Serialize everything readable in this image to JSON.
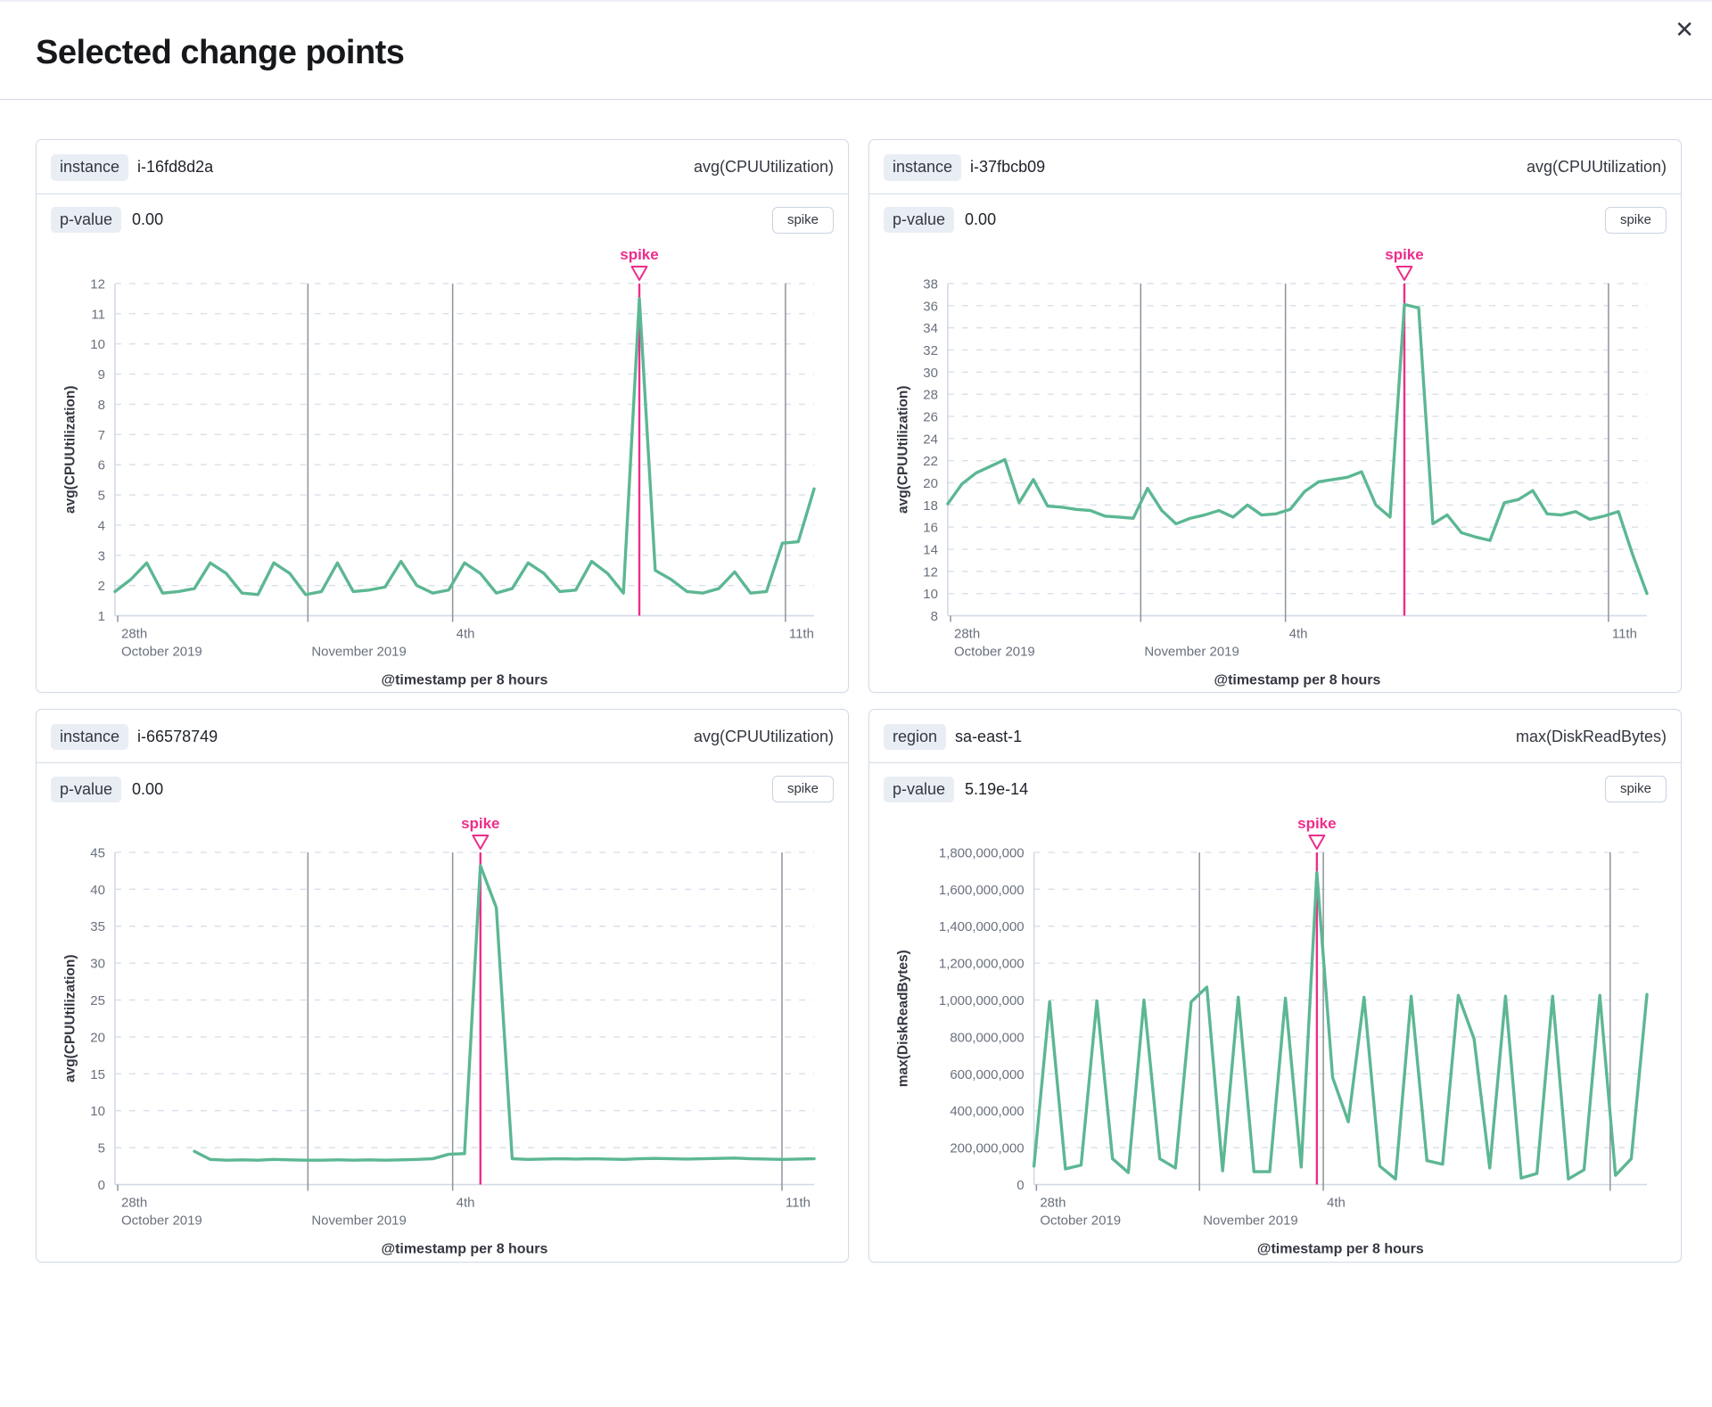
{
  "modal": {
    "title": "Selected change points",
    "close_icon": "✕"
  },
  "colors": {
    "series": "#5CB793",
    "accent": "#ED2D8B",
    "grid_dashed": "#D9DFEA",
    "grid_solid": "#D3DAE6",
    "vline": "#8E939B",
    "tick_text": "#69707D",
    "axis_title": "#343741"
  },
  "panels": [
    {
      "key_label": "instance",
      "key_value": "i-16fd8d2a",
      "metric": "avg(CPUUtilization)",
      "p_label": "p-value",
      "p_value": "0.00",
      "change_type": "spike"
    },
    {
      "key_label": "instance",
      "key_value": "i-37fbcb09",
      "metric": "avg(CPUUtilization)",
      "p_label": "p-value",
      "p_value": "0.00",
      "change_type": "spike"
    },
    {
      "key_label": "instance",
      "key_value": "i-66578749",
      "metric": "avg(CPUUtilization)",
      "p_label": "p-value",
      "p_value": "0.00",
      "change_type": "spike"
    },
    {
      "key_label": "region",
      "key_value": "sa-east-1",
      "metric": "max(DiskReadBytes)",
      "p_label": "p-value",
      "p_value": "5.19e-14",
      "change_type": "spike"
    }
  ],
  "chart_data": [
    {
      "type": "line",
      "ylabel": "avg(CPUUtilization)",
      "xlabel": "@timestamp per 8 hours",
      "annotation": "spike",
      "y_min": 1,
      "y_max": 12,
      "y_step": 1,
      "y_format": "plain",
      "x_ticks": [
        {
          "f": 0.004,
          "l1": "28th",
          "l2": "October 2019",
          "grid": false
        },
        {
          "f": 0.276,
          "l1": "",
          "l2": "November 2019",
          "grid": true
        },
        {
          "f": 0.483,
          "l1": "4th",
          "l2": "",
          "grid": true
        },
        {
          "f": 0.959,
          "l1": "11th",
          "l2": "",
          "grid": true
        }
      ],
      "spike_index": 33,
      "values": [
        1.8,
        2.2,
        2.75,
        1.75,
        1.8,
        1.9,
        2.75,
        2.4,
        1.75,
        1.7,
        2.75,
        2.4,
        1.7,
        1.8,
        2.75,
        1.8,
        1.85,
        1.95,
        2.8,
        2.0,
        1.75,
        1.85,
        2.75,
        2.4,
        1.75,
        1.9,
        2.75,
        2.4,
        1.8,
        1.85,
        2.8,
        2.4,
        1.75,
        11.5,
        2.5,
        2.2,
        1.8,
        1.75,
        1.9,
        2.45,
        1.75,
        1.8,
        3.4,
        3.45,
        5.2
      ]
    },
    {
      "type": "line",
      "ylabel": "avg(CPUUtilization)",
      "xlabel": "@timestamp per 8 hours",
      "annotation": "spike",
      "y_min": 8,
      "y_max": 38,
      "y_step": 2,
      "y_format": "plain",
      "x_ticks": [
        {
          "f": 0.004,
          "l1": "28th",
          "l2": "October 2019",
          "grid": false
        },
        {
          "f": 0.276,
          "l1": "",
          "l2": "November 2019",
          "grid": true
        },
        {
          "f": 0.483,
          "l1": "4th",
          "l2": "",
          "grid": true
        },
        {
          "f": 0.945,
          "l1": "11th",
          "l2": "",
          "grid": true
        }
      ],
      "spike_index": 32,
      "values": [
        18.1,
        19.9,
        20.9,
        21.5,
        22.1,
        18.2,
        20.3,
        17.9,
        17.8,
        17.6,
        17.5,
        17.0,
        16.9,
        16.8,
        19.5,
        17.5,
        16.3,
        16.8,
        17.1,
        17.5,
        16.9,
        18.0,
        17.1,
        17.2,
        17.6,
        19.2,
        20.1,
        20.3,
        20.5,
        21.0,
        18.0,
        16.9,
        36.1,
        35.8,
        16.3,
        17.1,
        15.5,
        15.1,
        14.8,
        18.2,
        18.5,
        19.3,
        17.2,
        17.1,
        17.4,
        16.7,
        17.0,
        17.4,
        13.5,
        10.0
      ]
    },
    {
      "type": "line",
      "ylabel": "avg(CPUUtilization)",
      "xlabel": "@timestamp per 8 hours",
      "annotation": "spike",
      "y_min": 0,
      "y_max": 45,
      "y_step": 5,
      "y_format": "plain",
      "x_ticks": [
        {
          "f": 0.004,
          "l1": "28th",
          "l2": "October 2019",
          "grid": false
        },
        {
          "f": 0.276,
          "l1": "",
          "l2": "November 2019",
          "grid": true
        },
        {
          "f": 0.483,
          "l1": "4th",
          "l2": "",
          "grid": true
        },
        {
          "f": 0.954,
          "l1": "11th",
          "l2": "",
          "grid": true
        }
      ],
      "spike_index": 23,
      "values": [
        null,
        null,
        null,
        null,
        null,
        4.5,
        3.4,
        3.3,
        3.35,
        3.3,
        3.4,
        3.35,
        3.3,
        3.3,
        3.35,
        3.3,
        3.35,
        3.3,
        3.35,
        3.4,
        3.5,
        4.1,
        4.2,
        43.2,
        37.5,
        3.5,
        3.4,
        3.45,
        3.5,
        3.45,
        3.5,
        3.45,
        3.4,
        3.5,
        3.55,
        3.5,
        3.45,
        3.5,
        3.55,
        3.6,
        3.5,
        3.45,
        3.4,
        3.45,
        3.5
      ]
    },
    {
      "type": "line",
      "ylabel": "max(DiskReadBytes)",
      "xlabel": "@timestamp per 8 hours",
      "annotation": "spike",
      "y_min": 0,
      "y_max": 1800000000,
      "y_step": 200000000,
      "y_format": "comma",
      "x_ticks": [
        {
          "f": 0.004,
          "l1": "28th",
          "l2": "October 2019",
          "grid": false
        },
        {
          "f": 0.27,
          "l1": "",
          "l2": "November 2019",
          "grid": true
        },
        {
          "f": 0.472,
          "l1": "4th",
          "l2": "",
          "grid": true
        },
        {
          "f": 0.94,
          "l1": "",
          "l2": "",
          "grid": true
        }
      ],
      "spike_index": 18,
      "values": [
        100000000,
        990000000,
        85000000,
        105000000,
        995000000,
        140000000,
        65000000,
        1000000000,
        140000000,
        90000000,
        990000000,
        1070000000,
        75000000,
        1015000000,
        70000000,
        70000000,
        1010000000,
        95000000,
        1690000000,
        580000000,
        340000000,
        1015000000,
        100000000,
        30000000,
        1020000000,
        130000000,
        110000000,
        1025000000,
        790000000,
        90000000,
        1020000000,
        35000000,
        60000000,
        1020000000,
        30000000,
        80000000,
        1025000000,
        50000000,
        140000000,
        1030000000
      ]
    }
  ]
}
